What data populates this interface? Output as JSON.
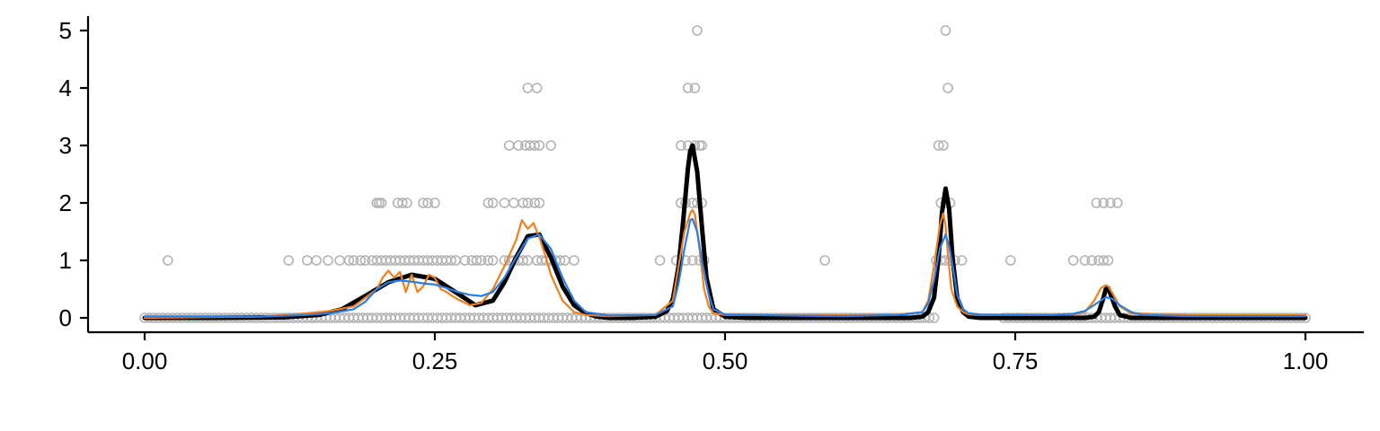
{
  "chart_data": {
    "type": "scatter",
    "title": "",
    "xlabel": "",
    "ylabel": "",
    "xlim": [
      -0.05,
      1.05
    ],
    "ylim": [
      -0.25,
      5.25
    ],
    "x_ticks": [
      "0.00",
      "0.25",
      "0.50",
      "0.75",
      "1.00"
    ],
    "y_ticks": [
      "0",
      "1",
      "2",
      "3",
      "4",
      "5"
    ],
    "grid": false,
    "legend": "none",
    "colors": {
      "points": "#b3b3b3",
      "true_curve": "#000000",
      "orange_fit": "#f07f1d",
      "blue_fit": "#2b7de3",
      "axis": "#000000"
    },
    "points": {
      "y0": [
        [
          0.0,
          0.68
        ],
        [
          0.74,
          1.0
        ]
      ],
      "y1": [
        0.02,
        0.124,
        0.14,
        0.148,
        0.158,
        0.168,
        0.176,
        0.18,
        0.186,
        0.19,
        0.196,
        0.2,
        0.204,
        0.208,
        0.212,
        0.216,
        0.22,
        0.224,
        0.228,
        0.232,
        0.236,
        0.24,
        0.244,
        0.248,
        0.252,
        0.256,
        0.26,
        0.264,
        0.268,
        0.276,
        0.282,
        0.286,
        0.29,
        0.296,
        0.3,
        0.31,
        0.314,
        0.318,
        0.322,
        0.326,
        0.33,
        0.338,
        0.342,
        0.346,
        0.35,
        0.354,
        0.358,
        0.362,
        0.37,
        0.444,
        0.458,
        0.466,
        0.472,
        0.478,
        0.482,
        0.586,
        0.682,
        0.686,
        0.69,
        0.694,
        0.698,
        0.704,
        0.746,
        0.8,
        0.81,
        0.816,
        0.822,
        0.826,
        0.83
      ],
      "y2": [
        0.2,
        0.202,
        0.204,
        0.218,
        0.222,
        0.226,
        0.24,
        0.244,
        0.25,
        0.296,
        0.3,
        0.31,
        0.318,
        0.326,
        0.33,
        0.336,
        0.34,
        0.462,
        0.466,
        0.472,
        0.476,
        0.48,
        0.686,
        0.69,
        0.694,
        0.82,
        0.826,
        0.832,
        0.838
      ],
      "y3": [
        0.314,
        0.322,
        0.328,
        0.332,
        0.336,
        0.34,
        0.35,
        0.462,
        0.468,
        0.474,
        0.478,
        0.48,
        0.684,
        0.688
      ],
      "y4": [
        0.33,
        0.338,
        0.468,
        0.474,
        0.692
      ],
      "y5": [
        0.476,
        0.69
      ]
    },
    "series": [
      {
        "x": [
          0,
          0.06,
          0.12,
          0.15,
          0.17,
          0.19,
          0.21,
          0.23,
          0.25,
          0.27,
          0.285,
          0.3,
          0.31,
          0.32,
          0.33,
          0.34,
          0.35,
          0.36,
          0.37,
          0.38,
          0.39,
          0.4,
          0.42,
          0.44,
          0.45,
          0.455,
          0.46,
          0.464,
          0.468,
          0.47,
          0.472,
          0.476,
          0.48,
          0.484,
          0.49,
          0.5,
          0.52,
          0.6,
          0.66,
          0.67,
          0.675,
          0.68,
          0.684,
          0.687,
          0.69,
          0.693,
          0.696,
          0.7,
          0.705,
          0.71,
          0.72,
          0.78,
          0.81,
          0.818,
          0.822,
          0.826,
          0.828,
          0.83,
          0.832,
          0.836,
          0.84,
          0.85,
          0.9,
          1
        ],
        "y": [
          0,
          0,
          0.01,
          0.05,
          0.15,
          0.38,
          0.62,
          0.75,
          0.68,
          0.42,
          0.22,
          0.3,
          0.62,
          1.05,
          1.42,
          1.45,
          1.05,
          0.55,
          0.22,
          0.08,
          0.02,
          0,
          0,
          0.02,
          0.12,
          0.32,
          0.9,
          1.7,
          2.6,
          2.9,
          3.0,
          2.55,
          1.6,
          0.7,
          0.15,
          0.02,
          0,
          0,
          0,
          0.02,
          0.1,
          0.35,
          1.05,
          1.85,
          2.25,
          1.9,
          1.05,
          0.35,
          0.1,
          0.02,
          0,
          0,
          0,
          0.02,
          0.1,
          0.35,
          0.5,
          0.52,
          0.42,
          0.2,
          0.05,
          0,
          0,
          0
        ]
      },
      {
        "x": [
          0,
          0.1,
          0.14,
          0.16,
          0.18,
          0.19,
          0.2,
          0.205,
          0.21,
          0.215,
          0.22,
          0.225,
          0.23,
          0.235,
          0.24,
          0.245,
          0.25,
          0.255,
          0.26,
          0.265,
          0.27,
          0.28,
          0.29,
          0.3,
          0.31,
          0.32,
          0.325,
          0.33,
          0.335,
          0.34,
          0.345,
          0.35,
          0.36,
          0.37,
          0.38,
          0.4,
          0.44,
          0.455,
          0.46,
          0.465,
          0.47,
          0.472,
          0.474,
          0.478,
          0.482,
          0.486,
          0.49,
          0.5,
          0.55,
          0.6,
          0.65,
          0.67,
          0.675,
          0.68,
          0.685,
          0.688,
          0.69,
          0.692,
          0.695,
          0.7,
          0.705,
          0.71,
          0.72,
          0.78,
          0.8,
          0.81,
          0.818,
          0.824,
          0.828,
          0.83,
          0.834,
          0.84,
          0.85,
          0.9,
          1
        ],
        "y": [
          0,
          0.02,
          0.08,
          0.12,
          0.2,
          0.35,
          0.5,
          0.7,
          0.82,
          0.7,
          0.8,
          0.45,
          0.75,
          0.45,
          0.55,
          0.75,
          0.7,
          0.5,
          0.45,
          0.38,
          0.32,
          0.22,
          0.26,
          0.5,
          0.9,
          1.35,
          1.7,
          1.55,
          1.65,
          1.4,
          1.1,
          0.75,
          0.3,
          0.1,
          0.05,
          0.03,
          0.05,
          0.3,
          0.9,
          1.5,
          1.82,
          1.88,
          1.8,
          1.2,
          0.5,
          0.2,
          0.08,
          0.05,
          0.05,
          0.05,
          0.06,
          0.1,
          0.3,
          0.9,
          1.6,
          1.82,
          1.6,
          1.1,
          0.5,
          0.2,
          0.1,
          0.06,
          0.05,
          0.05,
          0.06,
          0.1,
          0.3,
          0.52,
          0.57,
          0.55,
          0.42,
          0.2,
          0.08,
          0.05,
          0.05
        ]
      },
      {
        "x": [
          0,
          0.1,
          0.14,
          0.16,
          0.18,
          0.19,
          0.2,
          0.21,
          0.22,
          0.23,
          0.24,
          0.25,
          0.26,
          0.27,
          0.28,
          0.29,
          0.3,
          0.31,
          0.32,
          0.33,
          0.34,
          0.35,
          0.36,
          0.37,
          0.38,
          0.4,
          0.44,
          0.455,
          0.46,
          0.465,
          0.47,
          0.472,
          0.476,
          0.48,
          0.486,
          0.49,
          0.5,
          0.55,
          0.6,
          0.65,
          0.67,
          0.675,
          0.68,
          0.685,
          0.69,
          0.693,
          0.697,
          0.7,
          0.705,
          0.71,
          0.72,
          0.78,
          0.8,
          0.81,
          0.82,
          0.828,
          0.834,
          0.84,
          0.85,
          0.86,
          0.9,
          1
        ],
        "y": [
          0.02,
          0.02,
          0.05,
          0.08,
          0.15,
          0.28,
          0.5,
          0.62,
          0.65,
          0.63,
          0.6,
          0.58,
          0.52,
          0.45,
          0.4,
          0.38,
          0.45,
          0.7,
          1.05,
          1.38,
          1.45,
          1.2,
          0.7,
          0.3,
          0.1,
          0.04,
          0.05,
          0.2,
          0.6,
          1.2,
          1.7,
          1.72,
          1.5,
          1.0,
          0.4,
          0.15,
          0.06,
          0.04,
          0.03,
          0.05,
          0.1,
          0.25,
          0.65,
          1.2,
          1.45,
          1.25,
          0.8,
          0.4,
          0.15,
          0.08,
          0.06,
          0.05,
          0.07,
          0.12,
          0.25,
          0.36,
          0.33,
          0.22,
          0.1,
          0.05,
          0.03,
          0.03
        ]
      }
    ]
  }
}
